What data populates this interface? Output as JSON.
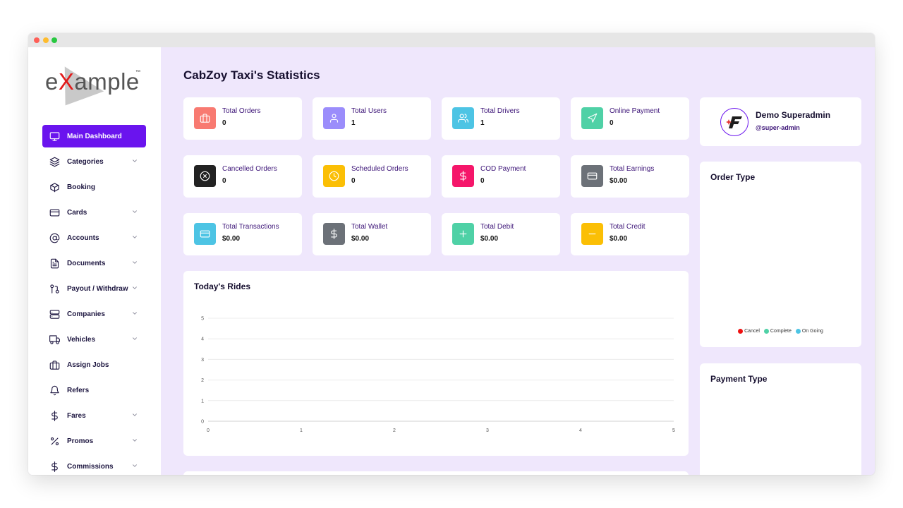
{
  "brand": {
    "logo_prefix": "e",
    "logo_x": "X",
    "logo_suffix": "ample",
    "logo_tm": "™"
  },
  "sidebar": {
    "items": [
      {
        "label": "Main Dashboard",
        "icon": "monitor-icon",
        "active": true,
        "chevron": false
      },
      {
        "label": "Categories",
        "icon": "layers-icon",
        "chevron": true
      },
      {
        "label": "Booking",
        "icon": "box-icon",
        "chevron": false
      },
      {
        "label": "Cards",
        "icon": "credit-card-icon",
        "chevron": true
      },
      {
        "label": "Accounts",
        "icon": "at-sign-icon",
        "chevron": true
      },
      {
        "label": "Documents",
        "icon": "document-icon",
        "chevron": true
      },
      {
        "label": "Payout / Withdraw",
        "icon": "git-pull-icon",
        "chevron": true
      },
      {
        "label": "Companies",
        "icon": "server-icon",
        "chevron": true
      },
      {
        "label": "Vehicles",
        "icon": "truck-icon",
        "chevron": true
      },
      {
        "label": "Assign Jobs",
        "icon": "briefcase-icon",
        "chevron": false
      },
      {
        "label": "Refers",
        "icon": "bell-icon",
        "chevron": false
      },
      {
        "label": "Fares",
        "icon": "dollar-icon",
        "chevron": true
      },
      {
        "label": "Promos",
        "icon": "percent-icon",
        "chevron": true
      },
      {
        "label": "Commissions",
        "icon": "dollar-icon",
        "chevron": true
      }
    ]
  },
  "page": {
    "title": "CabZoy Taxi's Statistics"
  },
  "stats": [
    {
      "label": "Total Orders",
      "value": "0",
      "color": "#f87a71",
      "icon": "briefcase-icon"
    },
    {
      "label": "Total Users",
      "value": "1",
      "color": "#9b8dfb",
      "icon": "user-icon"
    },
    {
      "label": "Total Drivers",
      "value": "1",
      "color": "#4dc4e4",
      "icon": "users-icon"
    },
    {
      "label": "Online Payment",
      "value": "0",
      "color": "#4fd1a6",
      "icon": "send-icon"
    },
    {
      "label": "Cancelled Orders",
      "value": "0",
      "color": "#222222",
      "icon": "x-circle-icon"
    },
    {
      "label": "Scheduled Orders",
      "value": "0",
      "color": "#fbbf05",
      "icon": "clock-icon"
    },
    {
      "label": "COD Payment",
      "value": "0",
      "color": "#f5166a",
      "icon": "dollar-icon"
    },
    {
      "label": "Total Earnings",
      "value": "$0.00",
      "color": "#6c7178",
      "icon": "credit-card-icon"
    },
    {
      "label": "Total Transactions",
      "value": "$0.00",
      "color": "#4dc4e4",
      "icon": "credit-card-icon"
    },
    {
      "label": "Total Wallet",
      "value": "$0.00",
      "color": "#6c7178",
      "icon": "dollar-icon"
    },
    {
      "label": "Total Debit",
      "value": "$0.00",
      "color": "#4fd1a6",
      "icon": "plus-icon"
    },
    {
      "label": "Total Credit",
      "value": "$0.00",
      "color": "#fbbf05",
      "icon": "minus-icon"
    }
  ],
  "profile": {
    "name": "Demo Superadmin",
    "handle": "@super-admin"
  },
  "order_type": {
    "title": "Order Type",
    "legend": [
      {
        "label": "Cancel",
        "color": "#ef1010"
      },
      {
        "label": "Complete",
        "color": "#4fd1a6"
      },
      {
        "label": "On Going",
        "color": "#4dc4e4"
      }
    ]
  },
  "payment_type": {
    "title": "Payment Type"
  },
  "chart_data": {
    "type": "line",
    "title": "Today's Rides",
    "x": [
      0,
      1,
      2,
      3,
      4,
      5
    ],
    "series": [],
    "xlabel": "",
    "ylabel": "",
    "xlim": [
      0,
      5
    ],
    "ylim": [
      0,
      5
    ],
    "xticks": [
      "0",
      "1",
      "2",
      "3",
      "4",
      "5"
    ],
    "yticks": [
      "0",
      "1",
      "2",
      "3",
      "4",
      "5"
    ],
    "grid": true
  }
}
